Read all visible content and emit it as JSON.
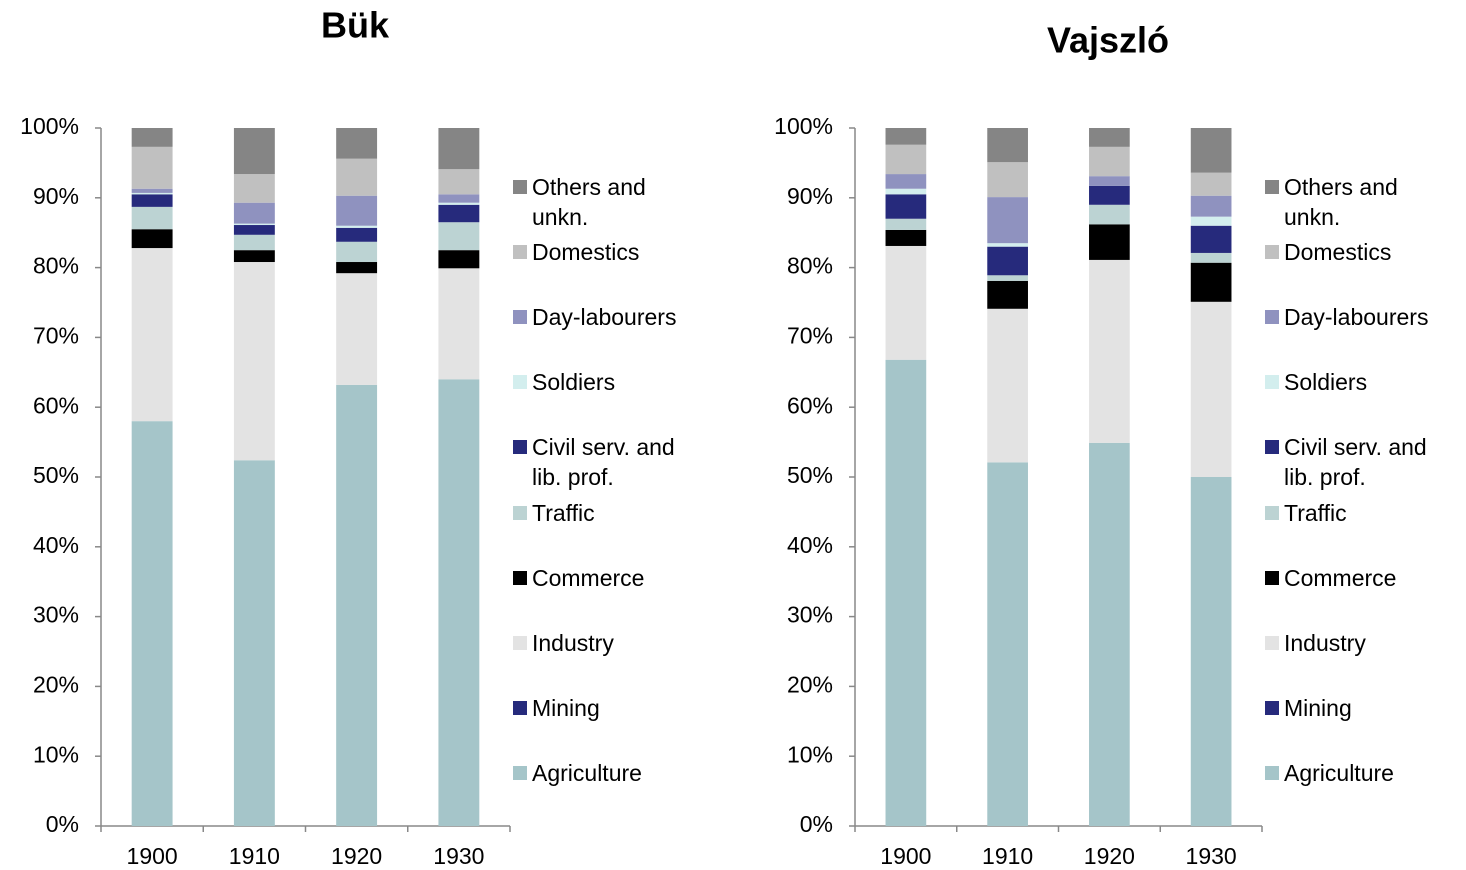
{
  "chart_data": [
    {
      "type": "bar",
      "stacked": true,
      "title": "Bük",
      "categories": [
        "1900",
        "1910",
        "1920",
        "1930"
      ],
      "ylim": [
        0,
        100
      ],
      "yticks": [
        {
          "value": 0,
          "label": "0%"
        },
        {
          "value": 10,
          "label": "10%"
        },
        {
          "value": 20,
          "label": "20%"
        },
        {
          "value": 30,
          "label": "30%"
        },
        {
          "value": 40,
          "label": "40%"
        },
        {
          "value": 50,
          "label": "50%"
        },
        {
          "value": 60,
          "label": "60%"
        },
        {
          "value": 70,
          "label": "70%"
        },
        {
          "value": 80,
          "label": "80%"
        },
        {
          "value": 90,
          "label": "90%"
        },
        {
          "value": 100,
          "label": "100%"
        }
      ],
      "series": [
        {
          "name": "Agriculture",
          "color": "#a5c5c9",
          "values": [
            58.0,
            52.4,
            63.2,
            64.0
          ]
        },
        {
          "name": "Mining",
          "color": "#262a7c",
          "values": [
            0,
            0,
            0,
            0
          ]
        },
        {
          "name": "Industry",
          "color": "#e3e3e3",
          "values": [
            24.8,
            28.4,
            16.0,
            15.9
          ]
        },
        {
          "name": "Commerce",
          "color": "#000000",
          "values": [
            2.7,
            1.7,
            1.6,
            2.6
          ]
        },
        {
          "name": "Traffic",
          "color": "#bcd3d3",
          "values": [
            3.2,
            2.2,
            2.9,
            4.0
          ]
        },
        {
          "name": "Civil serv. and lib. prof.",
          "color": "#262a7c",
          "values": [
            1.8,
            1.4,
            2.0,
            2.5
          ]
        },
        {
          "name": "Soldiers",
          "color": "#d3eeee",
          "values": [
            0.2,
            0.2,
            0.3,
            0.3
          ]
        },
        {
          "name": "Day-labourers",
          "color": "#8f92bf",
          "values": [
            0.6,
            3.0,
            4.3,
            1.2
          ]
        },
        {
          "name": "Domestics",
          "color": "#c0c0c0",
          "values": [
            6.0,
            4.1,
            5.3,
            3.6
          ]
        },
        {
          "name": "Others and unkn.",
          "color": "#858585",
          "values": [
            2.7,
            6.6,
            4.4,
            5.9
          ]
        }
      ]
    },
    {
      "type": "bar",
      "stacked": true,
      "title": "Vajszló",
      "categories": [
        "1900",
        "1910",
        "1920",
        "1930"
      ],
      "ylim": [
        0,
        100
      ],
      "yticks": [
        {
          "value": 0,
          "label": "0%"
        },
        {
          "value": 10,
          "label": "10%"
        },
        {
          "value": 20,
          "label": "20%"
        },
        {
          "value": 30,
          "label": "30%"
        },
        {
          "value": 40,
          "label": "40%"
        },
        {
          "value": 50,
          "label": "50%"
        },
        {
          "value": 60,
          "label": "60%"
        },
        {
          "value": 70,
          "label": "70%"
        },
        {
          "value": 80,
          "label": "80%"
        },
        {
          "value": 90,
          "label": "90%"
        },
        {
          "value": 100,
          "label": "100%"
        }
      ],
      "series": [
        {
          "name": "Agriculture",
          "color": "#a5c5c9",
          "values": [
            66.8,
            52.1,
            54.9,
            50.0
          ]
        },
        {
          "name": "Mining",
          "color": "#262a7c",
          "values": [
            0,
            0,
            0,
            0
          ]
        },
        {
          "name": "Industry",
          "color": "#e3e3e3",
          "values": [
            16.3,
            22.0,
            26.2,
            25.1
          ]
        },
        {
          "name": "Commerce",
          "color": "#000000",
          "values": [
            2.3,
            4.0,
            5.1,
            5.6
          ]
        },
        {
          "name": "Traffic",
          "color": "#bcd3d3",
          "values": [
            1.6,
            0.8,
            2.8,
            1.4
          ]
        },
        {
          "name": "Civil serv. and lib. prof.",
          "color": "#262a7c",
          "values": [
            3.5,
            4.1,
            2.7,
            3.9
          ]
        },
        {
          "name": "Soldiers",
          "color": "#d3eeee",
          "values": [
            0.8,
            0.5,
            0,
            1.3
          ]
        },
        {
          "name": "Day-labourers",
          "color": "#8f92bf",
          "values": [
            2.1,
            6.6,
            1.4,
            3.0
          ]
        },
        {
          "name": "Domestics",
          "color": "#c0c0c0",
          "values": [
            4.2,
            5.0,
            4.2,
            3.3
          ]
        },
        {
          "name": "Others and unkn.",
          "color": "#858585",
          "values": [
            2.4,
            4.9,
            2.7,
            6.4
          ]
        }
      ]
    }
  ]
}
